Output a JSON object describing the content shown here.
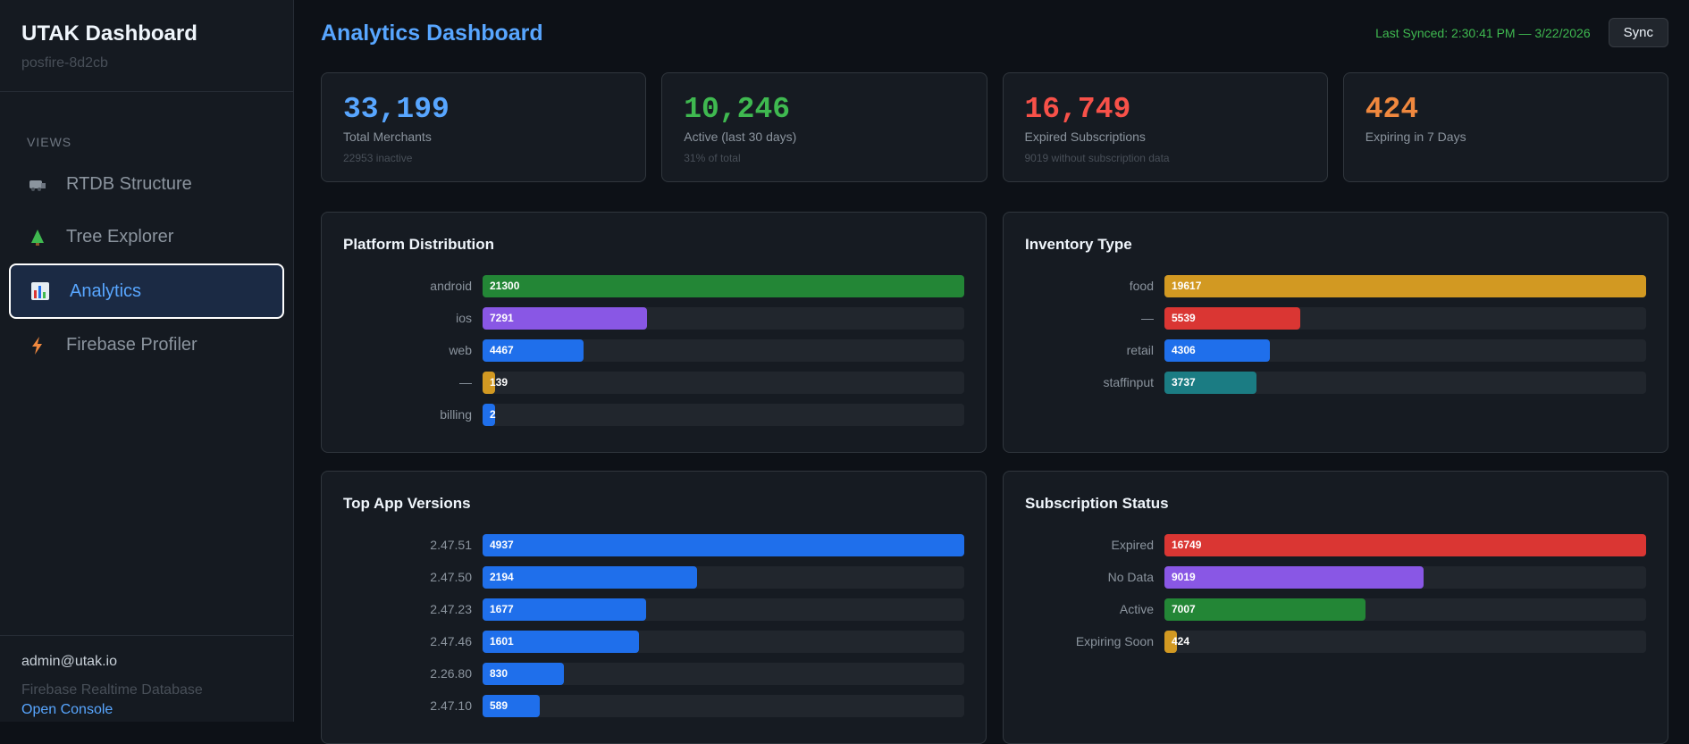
{
  "sidebar": {
    "title": "UTAK Dashboard",
    "subtitle": "posfire-8d2cb",
    "section": "VIEWS",
    "nav": [
      "RTDB Structure",
      "Tree Explorer",
      "Analytics",
      "Firebase Profiler"
    ],
    "user": "admin@utak.io",
    "database": "Firebase Realtime Database",
    "link": "Open Console"
  },
  "header": {
    "title": "Analytics Dashboard",
    "last_synced": "Last Synced: 2:30:41 PM — 3/22/2026",
    "button": "Sync"
  },
  "stats": [
    {
      "value": "33,199",
      "label": "Total Merchants",
      "note": "22953 inactive",
      "color": "#58a6ff"
    },
    {
      "value": "10,246",
      "label": "Active (last 30 days)",
      "note": "31% of total",
      "color": "#3fb950"
    },
    {
      "value": "16,749",
      "label": "Expired Subscriptions",
      "note": "9019 without subscription data",
      "color": "#f85149"
    },
    {
      "value": "424",
      "label": "Expiring in 7 Days",
      "color": "#f0883e"
    }
  ],
  "panels": [
    {
      "title": "Platform Distribution",
      "categories": [
        "android",
        "ios",
        "web",
        "—",
        "billing"
      ],
      "values": [
        21300,
        7291,
        4467,
        139,
        2
      ],
      "colors": [
        "#238636",
        "#8957e5",
        "#1f6feb",
        "#d29922",
        "#1f6feb"
      ]
    },
    {
      "title": "Inventory Type",
      "categories": [
        "food",
        "—",
        "retail",
        "staffinput"
      ],
      "values": [
        19617,
        5539,
        4306,
        3737
      ],
      "colors": [
        "#d29922",
        "#da3633",
        "#1f6feb",
        "#1b7c83"
      ]
    },
    {
      "title": "Top App Versions",
      "categories": [
        "2.47.51",
        "2.47.50",
        "2.47.23",
        "2.47.46",
        "2.26.80",
        "2.47.10"
      ],
      "values": [
        4937,
        2194,
        1677,
        1601,
        830,
        589
      ],
      "colors": [
        "#1f6feb",
        "#1f6feb",
        "#1f6feb",
        "#1f6feb",
        "#1f6feb",
        "#1f6feb"
      ]
    },
    {
      "title": "Subscription Status",
      "categories": [
        "Expired",
        "No Data",
        "Active",
        "Expiring Soon"
      ],
      "values": [
        16749,
        9019,
        7007,
        424
      ],
      "colors": [
        "#da3633",
        "#8957e5",
        "#238636",
        "#d29922"
      ]
    }
  ]
}
